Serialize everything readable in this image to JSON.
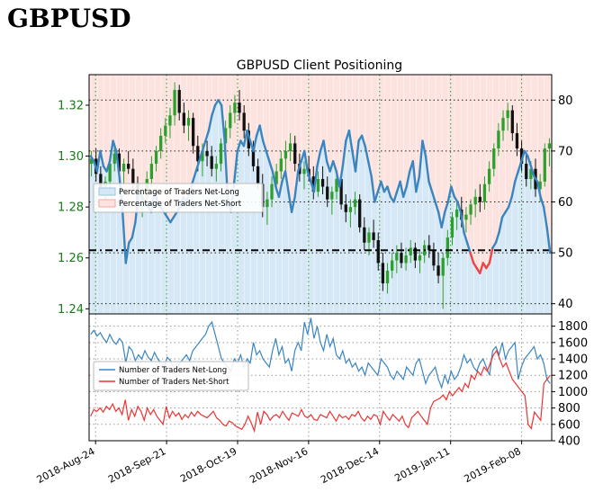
{
  "page": {
    "title": "GBPUSD"
  },
  "chart_data": [
    {
      "type": "line",
      "title": "GBPUSD Client Positioning",
      "x_tick_labels": [
        "2018-Aug-24",
        "2018-Sep-21",
        "2018-Oct-19",
        "2018-Nov-16",
        "2018-Dec-14",
        "2019-Jan-11",
        "2019-Feb-08"
      ],
      "price_axis": {
        "ylim": [
          1.238,
          1.332
        ],
        "ticks": [
          1.24,
          1.26,
          1.28,
          1.3,
          1.32
        ],
        "tick_labels": [
          "1.24",
          "1.26",
          "1.28",
          "1.30",
          "1.32"
        ]
      },
      "percent_axis": {
        "ylim": [
          38,
          85
        ],
        "ticks": [
          40,
          50,
          60,
          70,
          80
        ],
        "tick_labels": [
          "40",
          "50",
          "60",
          "70",
          "80"
        ]
      },
      "legend": {
        "placement": "upper-left",
        "entries": [
          "Percentage of Traders Net-Long",
          "Percentage of Traders Net-Short"
        ]
      },
      "reference_line": {
        "value": 50.5,
        "style": "dash-dot"
      },
      "colors": {
        "long": "#3a85c0",
        "short": "#ee4444",
        "bull": "#2ca02c",
        "bear": "#111111",
        "fill_long": "#d6e8f6",
        "fill_short": "#fde3df",
        "price_axis": "#1a7a1a"
      },
      "series": [
        {
          "name": "Percentage of Traders Net-Long",
          "values": [
            69,
            68,
            66,
            70,
            67,
            66,
            68,
            72,
            70,
            65,
            58,
            48,
            52,
            53,
            56,
            62,
            61,
            60,
            59,
            58,
            62,
            60,
            59,
            58,
            57,
            56,
            57,
            58,
            59,
            61,
            60,
            62,
            64,
            66,
            68,
            70,
            72,
            74,
            77,
            79,
            80,
            79,
            72,
            60,
            58,
            64,
            70,
            72,
            71,
            74,
            72,
            70,
            73,
            75,
            72,
            70,
            68,
            66,
            63,
            61,
            64,
            66,
            62,
            58,
            61,
            66,
            68,
            70,
            66,
            64,
            62,
            67,
            70,
            72,
            68,
            66,
            68,
            66,
            63,
            67,
            72,
            74,
            70,
            66,
            72,
            73,
            71,
            68,
            65,
            60,
            62,
            64,
            62,
            63,
            61,
            60,
            62,
            64,
            61,
            63,
            66,
            68,
            62,
            65,
            72,
            69,
            64,
            62,
            60,
            58,
            55,
            58,
            60,
            63,
            61,
            60,
            58,
            54,
            52,
            50,
            48,
            47,
            46,
            48,
            47,
            48,
            51,
            52,
            54,
            57,
            58,
            59,
            61,
            64,
            66,
            68,
            70,
            69,
            67,
            65,
            64,
            61,
            59,
            55,
            50
          ],
          "style": "solid"
        }
      ],
      "candles": [
        [
          1.297,
          1.302,
          1.292,
          1.299
        ],
        [
          1.299,
          1.303,
          1.29,
          1.293
        ],
        [
          1.293,
          1.296,
          1.285,
          1.288
        ],
        [
          1.288,
          1.292,
          1.283,
          1.29
        ],
        [
          1.29,
          1.3,
          1.287,
          1.297
        ],
        [
          1.297,
          1.305,
          1.294,
          1.301
        ],
        [
          1.301,
          1.303,
          1.292,
          1.294
        ],
        [
          1.294,
          1.299,
          1.289,
          1.297
        ],
        [
          1.297,
          1.302,
          1.293,
          1.295
        ],
        [
          1.295,
          1.299,
          1.287,
          1.289
        ],
        [
          1.289,
          1.292,
          1.279,
          1.282
        ],
        [
          1.282,
          1.286,
          1.276,
          1.284
        ],
        [
          1.284,
          1.294,
          1.281,
          1.291
        ],
        [
          1.291,
          1.3,
          1.288,
          1.297
        ],
        [
          1.297,
          1.304,
          1.294,
          1.302
        ],
        [
          1.302,
          1.311,
          1.299,
          1.308
        ],
        [
          1.308,
          1.315,
          1.305,
          1.312
        ],
        [
          1.312,
          1.319,
          1.307,
          1.316
        ],
        [
          1.316,
          1.329,
          1.312,
          1.326
        ],
        [
          1.326,
          1.328,
          1.314,
          1.317
        ],
        [
          1.317,
          1.321,
          1.309,
          1.312
        ],
        [
          1.312,
          1.318,
          1.306,
          1.315
        ],
        [
          1.315,
          1.317,
          1.301,
          1.304
        ],
        [
          1.304,
          1.308,
          1.294,
          1.298
        ],
        [
          1.298,
          1.305,
          1.292,
          1.302
        ],
        [
          1.302,
          1.306,
          1.296,
          1.3
        ],
        [
          1.3,
          1.304,
          1.292,
          1.295
        ],
        [
          1.295,
          1.3,
          1.29,
          1.297
        ],
        [
          1.297,
          1.307,
          1.294,
          1.305
        ],
        [
          1.305,
          1.314,
          1.302,
          1.311
        ],
        [
          1.311,
          1.32,
          1.307,
          1.317
        ],
        [
          1.317,
          1.324,
          1.313,
          1.321
        ],
        [
          1.321,
          1.326,
          1.314,
          1.317
        ],
        [
          1.317,
          1.32,
          1.307,
          1.31
        ],
        [
          1.31,
          1.313,
          1.3,
          1.303
        ],
        [
          1.303,
          1.306,
          1.294,
          1.296
        ],
        [
          1.296,
          1.299,
          1.287,
          1.289
        ],
        [
          1.289,
          1.293,
          1.276,
          1.28
        ],
        [
          1.28,
          1.286,
          1.273,
          1.283
        ],
        [
          1.283,
          1.292,
          1.28,
          1.289
        ],
        [
          1.289,
          1.297,
          1.286,
          1.294
        ],
        [
          1.294,
          1.302,
          1.291,
          1.299
        ],
        [
          1.299,
          1.306,
          1.294,
          1.302
        ],
        [
          1.302,
          1.309,
          1.298,
          1.305
        ],
        [
          1.305,
          1.308,
          1.294,
          1.297
        ],
        [
          1.297,
          1.301,
          1.29,
          1.293
        ],
        [
          1.293,
          1.298,
          1.287,
          1.295
        ],
        [
          1.295,
          1.3,
          1.29,
          1.292
        ],
        [
          1.292,
          1.296,
          1.283,
          1.286
        ],
        [
          1.286,
          1.294,
          1.284,
          1.291
        ],
        [
          1.291,
          1.296,
          1.285,
          1.288
        ],
        [
          1.288,
          1.292,
          1.28,
          1.283
        ],
        [
          1.283,
          1.288,
          1.277,
          1.286
        ],
        [
          1.286,
          1.294,
          1.283,
          1.291
        ],
        [
          1.291,
          1.293,
          1.279,
          1.281
        ],
        [
          1.281,
          1.285,
          1.274,
          1.278
        ],
        [
          1.278,
          1.283,
          1.272,
          1.28
        ],
        [
          1.28,
          1.286,
          1.277,
          1.283
        ],
        [
          1.283,
          1.285,
          1.27,
          1.272
        ],
        [
          1.272,
          1.276,
          1.263,
          1.266
        ],
        [
          1.266,
          1.272,
          1.261,
          1.27
        ],
        [
          1.27,
          1.275,
          1.264,
          1.267
        ],
        [
          1.267,
          1.27,
          1.255,
          1.258
        ],
        [
          1.258,
          1.262,
          1.247,
          1.25
        ],
        [
          1.25,
          1.258,
          1.246,
          1.255
        ],
        [
          1.255,
          1.262,
          1.252,
          1.259
        ],
        [
          1.259,
          1.265,
          1.254,
          1.262
        ],
        [
          1.262,
          1.266,
          1.256,
          1.258
        ],
        [
          1.258,
          1.264,
          1.255,
          1.261
        ],
        [
          1.261,
          1.267,
          1.258,
          1.264
        ],
        [
          1.264,
          1.266,
          1.256,
          1.259
        ],
        [
          1.259,
          1.263,
          1.254,
          1.261
        ],
        [
          1.261,
          1.267,
          1.258,
          1.265
        ],
        [
          1.265,
          1.269,
          1.26,
          1.263
        ],
        [
          1.263,
          1.266,
          1.255,
          1.257
        ],
        [
          1.257,
          1.262,
          1.25,
          1.253
        ],
        [
          1.253,
          1.262,
          1.24,
          1.26
        ],
        [
          1.26,
          1.271,
          1.257,
          1.268
        ],
        [
          1.268,
          1.278,
          1.265,
          1.276
        ],
        [
          1.276,
          1.282,
          1.271,
          1.279
        ],
        [
          1.279,
          1.284,
          1.272,
          1.275
        ],
        [
          1.275,
          1.28,
          1.27,
          1.277
        ],
        [
          1.277,
          1.283,
          1.273,
          1.281
        ],
        [
          1.281,
          1.287,
          1.276,
          1.284
        ],
        [
          1.284,
          1.289,
          1.278,
          1.282
        ],
        [
          1.282,
          1.292,
          1.279,
          1.289
        ],
        [
          1.289,
          1.298,
          1.286,
          1.295
        ],
        [
          1.295,
          1.305,
          1.292,
          1.303
        ],
        [
          1.303,
          1.313,
          1.3,
          1.31
        ],
        [
          1.31,
          1.318,
          1.306,
          1.315
        ],
        [
          1.315,
          1.321,
          1.31,
          1.318
        ],
        [
          1.318,
          1.32,
          1.306,
          1.309
        ],
        [
          1.309,
          1.313,
          1.3,
          1.303
        ],
        [
          1.303,
          1.306,
          1.294,
          1.297
        ],
        [
          1.297,
          1.301,
          1.288,
          1.291
        ],
        [
          1.291,
          1.298,
          1.287,
          1.295
        ],
        [
          1.295,
          1.299,
          1.284,
          1.287
        ],
        [
          1.287,
          1.293,
          1.282,
          1.29
        ],
        [
          1.29,
          1.305,
          1.288,
          1.303
        ],
        [
          1.303,
          1.307,
          1.296,
          1.305
        ]
      ]
    },
    {
      "type": "line",
      "x_tick_labels": [
        "2018-Aug-24",
        "2018-Sep-21",
        "2018-Oct-19",
        "2018-Nov-16",
        "2018-Dec-14",
        "2019-Jan-11",
        "2019-Feb-08"
      ],
      "count_axis": {
        "ylim": [
          400,
          1950
        ],
        "ticks": [
          400,
          600,
          800,
          1000,
          1200,
          1400,
          1600,
          1800
        ],
        "tick_labels": [
          "400",
          "600",
          "800",
          "1000",
          "1200",
          "1400",
          "1600",
          "1800"
        ]
      },
      "legend": {
        "placement": "upper-left",
        "entries": [
          "Number of Traders Net-Long",
          "Number of Traders Net-Short"
        ]
      },
      "colors": {
        "long": "#3a85c0",
        "short": "#ee3333"
      },
      "series": [
        {
          "name": "Number of Traders Net-Long",
          "values": [
            1700,
            1750,
            1680,
            1720,
            1650,
            1600,
            1700,
            1620,
            1580,
            1650,
            1600,
            1350,
            1550,
            1500,
            1380,
            1450,
            1400,
            1500,
            1420,
            1380,
            1480,
            1400,
            1350,
            1300,
            1420,
            1380,
            1300,
            1250,
            1350,
            1400,
            1450,
            1380,
            1500,
            1550,
            1600,
            1650,
            1700,
            1800,
            1850,
            1700,
            1550,
            1400,
            1350,
            1300,
            1250,
            1400,
            1350,
            1450,
            1300,
            1400,
            1350,
            1600,
            1450,
            1500,
            1400,
            1350,
            1300,
            1500,
            1650,
            1450,
            1550,
            1350,
            1400,
            1250,
            1500,
            1600,
            1500,
            1850,
            1700,
            1900,
            1650,
            1800,
            1600,
            1500,
            1700,
            1550,
            1650,
            1450,
            1400,
            1500,
            1350,
            1400,
            1300,
            1350,
            1250,
            1300,
            1200,
            1350,
            1300,
            1250,
            1200,
            1400,
            1350,
            1300,
            1200,
            1150,
            1250,
            1200,
            1150,
            1300,
            1250,
            1200,
            1350,
            1400,
            1250,
            1100,
            1200,
            1250,
            1300,
            1150,
            1050,
            1200,
            1100,
            1250,
            1150,
            1200,
            1300,
            1450,
            1350,
            1400,
            1300,
            1250,
            1350,
            1400,
            1300,
            1200,
            1500,
            1550,
            1450,
            1600,
            1400,
            1500,
            1550,
            1600,
            1150,
            1300,
            1400,
            1450,
            1500,
            1550,
            1400,
            1450,
            1350,
            1150,
            1100
          ],
          "style": "solid"
        },
        {
          "name": "Number of Traders Net-Short",
          "values": [
            700,
            780,
            760,
            800,
            750,
            820,
            780,
            850,
            760,
            800,
            720,
            900,
            650,
            780,
            700,
            820,
            760,
            650,
            800,
            720,
            780,
            700,
            650,
            600,
            820,
            680,
            760,
            700,
            740,
            660,
            720,
            680,
            750,
            700,
            760,
            720,
            700,
            680,
            720,
            760,
            680,
            650,
            600,
            580,
            640,
            620,
            580,
            560,
            540,
            600,
            700,
            620,
            520,
            750,
            600,
            760,
            720,
            650,
            700,
            720,
            680,
            760,
            700,
            650,
            740,
            720,
            700,
            780,
            700,
            680,
            720,
            660,
            650,
            720,
            700,
            680,
            760,
            700,
            640,
            720,
            680,
            700,
            660,
            720,
            700,
            760,
            680,
            640,
            700,
            660,
            720,
            700,
            600,
            760,
            700,
            650,
            720,
            680,
            640,
            700,
            600,
            560,
            680,
            720,
            760,
            700,
            650,
            600,
            800,
            880,
            900,
            920,
            960,
            900,
            1000,
            950,
            1000,
            1050,
            1000,
            1100,
            1050,
            1200,
            1150,
            1250,
            1200,
            1300,
            1250,
            1350,
            1450,
            1500,
            1400,
            1300,
            1350,
            1250,
            1150,
            1100,
            1050,
            1000,
            950,
            600,
            550,
            750,
            700,
            650,
            1100,
            1150,
            1200
          ],
          "style": "solid"
        }
      ]
    }
  ]
}
